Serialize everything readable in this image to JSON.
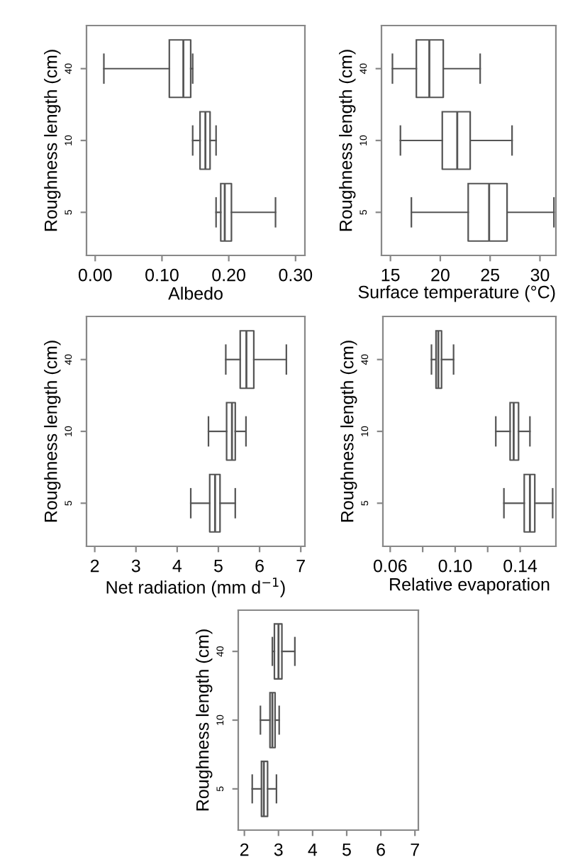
{
  "chart_data": [
    {
      "type": "box",
      "orientation": "horizontal",
      "xlabel": "Albedo",
      "ylabel": "Roughness length (cm)",
      "categories": [
        "40",
        "10",
        "5"
      ],
      "xlim": [
        -0.013,
        0.314
      ],
      "xticks": [
        {
          "value": 0,
          "label": "0.00"
        },
        {
          "value": 0.1,
          "label": "0.10"
        },
        {
          "value": 0.2,
          "label": "0.20"
        },
        {
          "value": 0.3,
          "label": "0.30"
        }
      ],
      "color": "#555555",
      "boxes": [
        {
          "low": 0.013,
          "q1": 0.111,
          "median": 0.132,
          "q3": 0.143,
          "high": 0.146
        },
        {
          "low": 0.146,
          "q1": 0.157,
          "median": 0.165,
          "q3": 0.172,
          "high": 0.181
        },
        {
          "low": 0.181,
          "q1": 0.188,
          "median": 0.194,
          "q3": 0.204,
          "high": 0.27
        }
      ]
    },
    {
      "type": "box",
      "orientation": "horizontal",
      "xlabel": "Surface temperature (°C)",
      "ylabel": "Roughness length (cm)",
      "categories": [
        "40",
        "10",
        "5"
      ],
      "xlim": [
        14.1,
        31.6
      ],
      "xticks": [
        15,
        20,
        25,
        30
      ],
      "color": "#555555",
      "boxes": [
        {
          "low": 15.2,
          "q1": 17.6,
          "median": 18.9,
          "q3": 20.3,
          "high": 24.0
        },
        {
          "low": 16.0,
          "q1": 20.2,
          "median": 21.7,
          "q3": 23.0,
          "high": 27.2
        },
        {
          "low": 17.1,
          "q1": 22.8,
          "median": 24.9,
          "q3": 26.7,
          "high": 31.4
        }
      ]
    },
    {
      "type": "box",
      "orientation": "horizontal",
      "xlabel": "Net radiation (mm d$^{−1}$)",
      "ylabel": "Roughness length (cm)",
      "categories": [
        "40",
        "10",
        "5"
      ],
      "xlim": [
        1.8,
        7.1
      ],
      "xticks": [
        2,
        3,
        4,
        5,
        6,
        7
      ],
      "color": "#555555",
      "boxes": [
        {
          "low": 5.18,
          "q1": 5.53,
          "median": 5.68,
          "q3": 5.86,
          "high": 6.65
        },
        {
          "low": 4.76,
          "q1": 5.2,
          "median": 5.33,
          "q3": 5.41,
          "high": 5.67
        },
        {
          "low": 4.33,
          "q1": 4.79,
          "median": 4.92,
          "q3": 5.04,
          "high": 5.41
        }
      ]
    },
    {
      "type": "box",
      "orientation": "horizontal",
      "xlabel": "Relative evaporation",
      "ylabel": "Roughness length (cm)",
      "categories": [
        "40",
        "10",
        "5"
      ],
      "xlim": [
        0.0555,
        0.162
      ],
      "xticks": [
        {
          "value": 0.06,
          "label": "0.06"
        },
        {
          "value": 0.08,
          "label": null
        },
        {
          "value": 0.1,
          "label": "0.10"
        },
        {
          "value": 0.12,
          "label": null
        },
        {
          "value": 0.14,
          "label": "0.14"
        }
      ],
      "color": "#555555",
      "boxes": [
        {
          "low": 0.0854,
          "q1": 0.0882,
          "median": 0.0896,
          "q3": 0.0916,
          "high": 0.099
        },
        {
          "low": 0.125,
          "q1": 0.1338,
          "median": 0.136,
          "q3": 0.139,
          "high": 0.146
        },
        {
          "low": 0.13,
          "q1": 0.1425,
          "median": 0.146,
          "q3": 0.149,
          "high": 0.16
        }
      ]
    },
    {
      "type": "box",
      "orientation": "horizontal",
      "ylabel": "Roughness length (cm)",
      "categories": [
        "40",
        "10",
        "5"
      ],
      "xlim": [
        1.82,
        7.1
      ],
      "xticks": [
        2,
        3,
        4,
        5,
        6,
        7
      ],
      "color": "#555555",
      "boxes": [
        {
          "low": 2.82,
          "q1": 2.88,
          "median": 3.0,
          "q3": 3.1,
          "high": 3.48
        },
        {
          "low": 2.47,
          "q1": 2.75,
          "median": 2.82,
          "q3": 2.9,
          "high": 3.02
        },
        {
          "low": 2.23,
          "q1": 2.5,
          "median": 2.57,
          "q3": 2.68,
          "high": 2.94
        }
      ]
    }
  ]
}
